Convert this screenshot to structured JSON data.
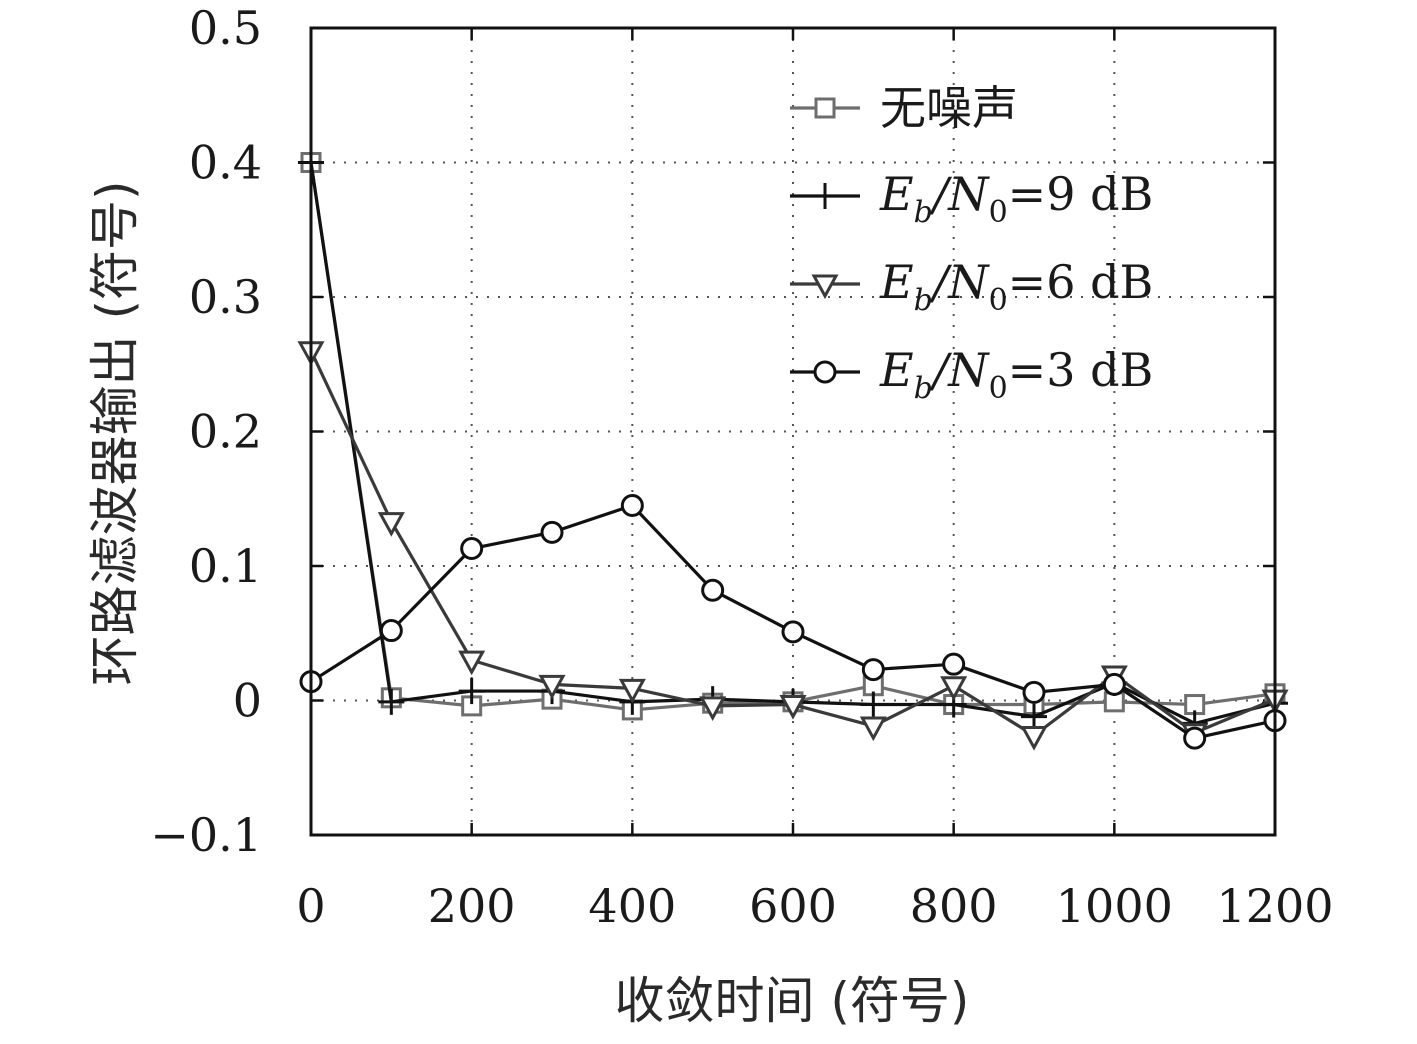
{
  "chart_data": {
    "type": "line",
    "xlabel": "收敛时间 (符号)",
    "ylabel": "环路滤波器输出 (符号)",
    "xlim": [
      0,
      1200
    ],
    "ylim": [
      -0.1,
      0.5
    ],
    "xticks": [
      0,
      200,
      400,
      600,
      800,
      1000,
      1200
    ],
    "yticks": [
      -0.1,
      0,
      0.1,
      0.2,
      0.3,
      0.4,
      0.5
    ],
    "xtick_labels": [
      "0",
      "200",
      "400",
      "600",
      "800",
      "1000",
      "1200"
    ],
    "ytick_labels": [
      "−0.1",
      "0",
      "0.1",
      "0.2",
      "0.3",
      "0.4",
      "0.5"
    ],
    "grid": true,
    "legend_position": "top-right",
    "x": [
      0,
      100,
      200,
      300,
      400,
      500,
      600,
      700,
      800,
      900,
      1000,
      1100,
      1200
    ],
    "series": [
      {
        "name": "无噪声",
        "color": "#6e6e6e",
        "marker": "square",
        "values": [
          0.4,
          0.002,
          -0.004,
          0.001,
          -0.007,
          -0.002,
          -0.001,
          0.011,
          -0.003,
          -0.003,
          -0.001,
          -0.003,
          0.005
        ]
      },
      {
        "name": "E_b/N_0=9 dB",
        "color": "#111111",
        "marker": "plus",
        "values": [
          0.4,
          -0.001,
          0.007,
          0.007,
          -0.001,
          0.001,
          -0.001,
          -0.003,
          -0.003,
          -0.012,
          0.013,
          -0.017,
          -0.002
        ]
      },
      {
        "name": "E_b/N_0=6 dB",
        "color": "#3a3a3a",
        "marker": "triangle-down",
        "values": [
          0.26,
          0.133,
          0.03,
          0.012,
          0.009,
          -0.004,
          -0.003,
          -0.019,
          0.011,
          -0.026,
          0.019,
          -0.024,
          0.001
        ]
      },
      {
        "name": "E_b/N_0=3 dB",
        "color": "#111111",
        "marker": "circle",
        "values": [
          0.014,
          0.052,
          0.113,
          0.125,
          0.145,
          0.082,
          0.051,
          0.023,
          0.027,
          0.006,
          0.012,
          -0.028,
          -0.015
        ]
      }
    ]
  },
  "legend_labels": [
    {
      "main": "无噪声"
    },
    {
      "E": "E",
      "b": "b",
      "mid": "/N",
      "zero": "0",
      "rest": "=9 dB"
    },
    {
      "E": "E",
      "b": "b",
      "mid": "/N",
      "zero": "0",
      "rest": "=6 dB"
    },
    {
      "E": "E",
      "b": "b",
      "mid": "/N",
      "zero": "0",
      "rest": "=3 dB"
    }
  ]
}
